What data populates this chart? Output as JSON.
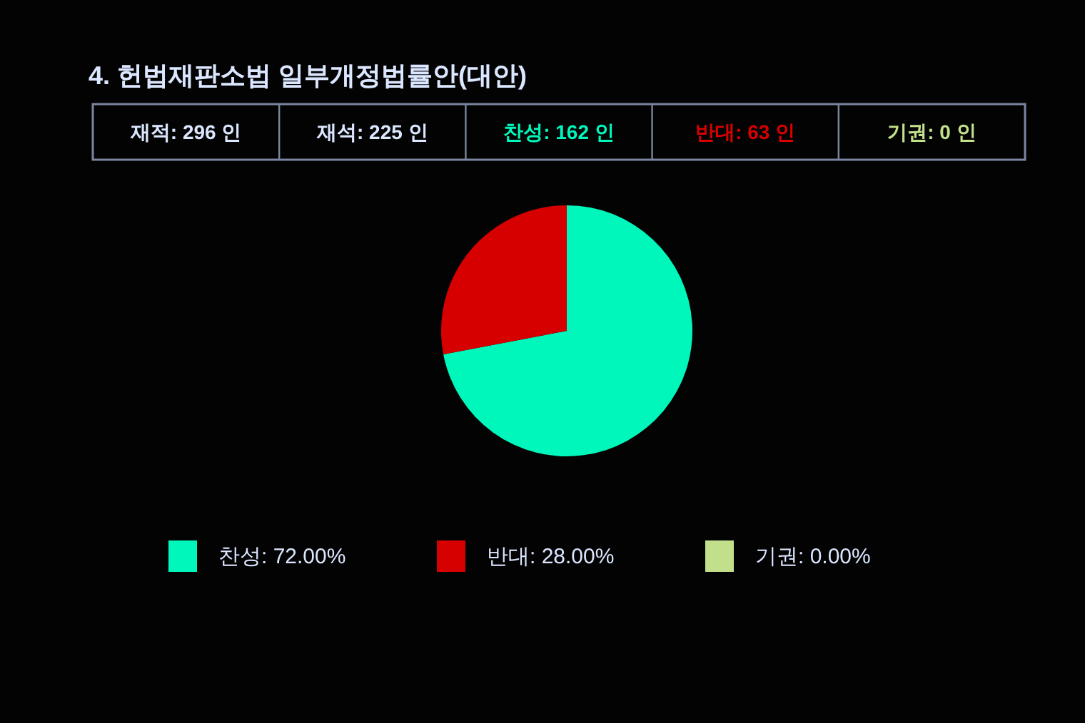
{
  "chart_data": {
    "type": "pie",
    "title": "4. 헌법재판소법 일부개정법률안(대안)",
    "annotations": [
      "재적: 296 인",
      "재석: 225 인",
      "찬성: 162 인",
      "반대: 63 인",
      "기권: 0 인"
    ],
    "categories": [
      "찬성",
      "반대",
      "기권"
    ],
    "values": [
      72,
      28,
      0
    ],
    "value_labels": [
      "72.00%",
      "28.00%",
      "0.00%"
    ],
    "colors": [
      "#00f7bb",
      "#d60000",
      "#c2e08c"
    ],
    "legend": "bottom"
  }
}
